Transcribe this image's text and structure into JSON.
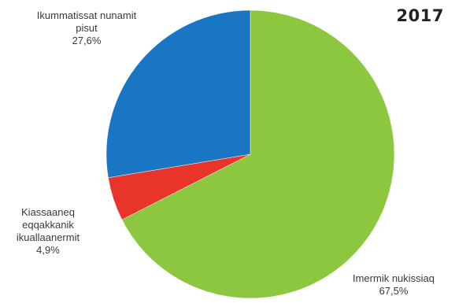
{
  "chart_data": {
    "type": "pie",
    "title": "2017",
    "slices": [
      {
        "label": "Imermik nukissiaq",
        "value": 67.5,
        "value_label": "67,5%",
        "color": "#8dc63f"
      },
      {
        "label": "Kiassaaneq eqqakkanik ikuallaanermit",
        "value": 4.9,
        "value_label": "4,9%",
        "color": "#e8342b"
      },
      {
        "label": "Ikummatissat nunamit pisut",
        "value": 27.6,
        "value_label": "27,6%",
        "color": "#1a75c2"
      }
    ]
  },
  "labels": {
    "blue": {
      "line1": "Ikummatissat nunamit",
      "line2": "pisut",
      "value": "27,6%"
    },
    "red": {
      "line1": "Kiassaaneq",
      "line2": "eqqakkanik",
      "line3": "ikuallaanermit",
      "value": "4,9%"
    },
    "green": {
      "line1": "Imermik nukissiaq",
      "value": "67,5%"
    }
  }
}
